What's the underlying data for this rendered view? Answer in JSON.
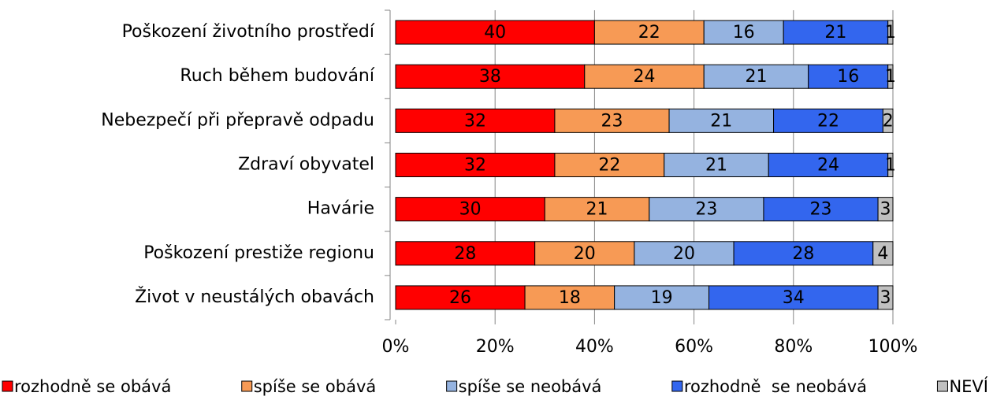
{
  "chart_data": {
    "type": "stacked-barh",
    "categories": [
      "Poškození životního prostředí",
      "Ruch během budování",
      "Nebezpečí při přepravě odpadu",
      "Zdraví obyvatel",
      "Havárie",
      "Poškození prestiže regionu",
      "Život v neustálých obavách"
    ],
    "series": [
      {
        "name": "rozhodně se obává",
        "color": "#ff0000",
        "values": [
          40,
          38,
          32,
          32,
          30,
          28,
          26
        ]
      },
      {
        "name": "spíše se obává",
        "color": "#f79a55",
        "values": [
          22,
          24,
          23,
          22,
          21,
          20,
          18
        ]
      },
      {
        "name": "spíše se neobává",
        "color": "#95b3e0",
        "values": [
          16,
          21,
          21,
          21,
          23,
          20,
          19
        ]
      },
      {
        "name": "rozhodně  se neobává",
        "color": "#3366ee",
        "values": [
          21,
          16,
          22,
          24,
          23,
          28,
          34
        ]
      },
      {
        "name": "NEVÍ",
        "color": "#c0c0c0",
        "values": [
          1,
          1,
          2,
          1,
          3,
          4,
          3
        ]
      }
    ],
    "xlim": [
      0,
      100
    ],
    "xticks": [
      {
        "value": 0,
        "label": "0%"
      },
      {
        "value": 20,
        "label": "20%"
      },
      {
        "value": 40,
        "label": "40%"
      },
      {
        "value": 60,
        "label": "60%"
      },
      {
        "value": 80,
        "label": "80%"
      },
      {
        "value": 100,
        "label": "100%"
      }
    ],
    "grid": true,
    "legend": "bottom"
  }
}
